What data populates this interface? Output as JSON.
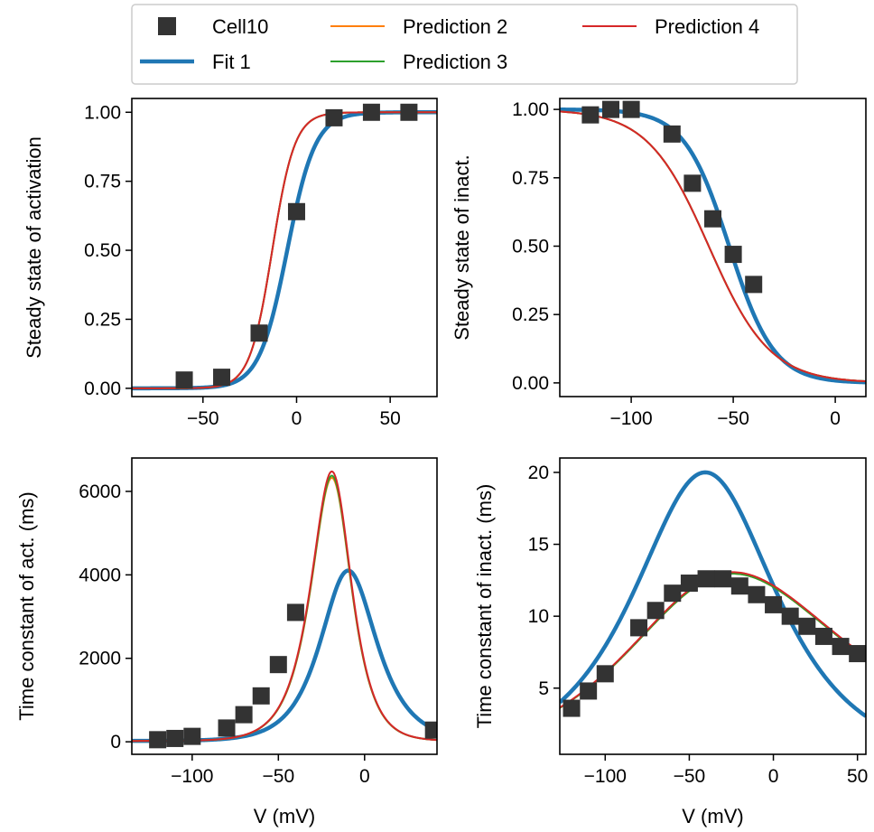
{
  "legend": {
    "placement": "top-center",
    "entries": [
      {
        "key": "cell10",
        "label": "Cell10",
        "kind": "marker",
        "color": "#333333"
      },
      {
        "key": "fit1",
        "label": "Fit 1",
        "kind": "line-thick",
        "color": "#1f77b4"
      },
      {
        "key": "pred2",
        "label": "Prediction 2",
        "kind": "line",
        "color": "#ff7f0e"
      },
      {
        "key": "pred3",
        "label": "Prediction 3",
        "kind": "line",
        "color": "#2ca02c"
      },
      {
        "key": "pred4",
        "label": "Prediction 4",
        "kind": "line",
        "color": "#d62728"
      }
    ]
  },
  "colors": {
    "cell10": "#333333",
    "fit1": "#1f77b4",
    "pred2": "#ff7f0e",
    "pred3": "#2ca02c",
    "pred4": "#d62728"
  },
  "chart_data": [
    {
      "type": "scatter",
      "id": "activation-ss",
      "xlabel": "",
      "ylabel": "Steady state of activation",
      "xlim": [
        -88,
        75
      ],
      "ylim": [
        -0.03,
        1.05
      ],
      "xticks": [
        -50,
        0,
        50
      ],
      "yticks": [
        0.0,
        0.25,
        0.5,
        0.75,
        1.0
      ],
      "ytick_labels": [
        "0.00",
        "0.25",
        "0.50",
        "0.75",
        "1.00"
      ],
      "grid": false,
      "series": [
        {
          "name": "Cell10",
          "role": "points",
          "x": [
            -60,
            -40,
            -20,
            0,
            20,
            40,
            60
          ],
          "y": [
            0.03,
            0.04,
            0.2,
            0.64,
            0.98,
            1.0,
            1.0
          ]
        },
        {
          "name": "Fit 1",
          "role": "curve",
          "model": "sigmoid-rise",
          "params": {
            "vhalf": -5,
            "k": 7.5
          }
        },
        {
          "name": "Prediction 2",
          "role": "curve",
          "model": "sigmoid-rise",
          "params": {
            "vhalf": -13,
            "k": 6
          }
        },
        {
          "name": "Prediction 3",
          "role": "curve",
          "model": "sigmoid-rise",
          "params": {
            "vhalf": -13,
            "k": 6
          }
        },
        {
          "name": "Prediction 4",
          "role": "curve",
          "model": "sigmoid-rise",
          "params": {
            "vhalf": -13,
            "k": 6
          }
        }
      ]
    },
    {
      "type": "scatter",
      "id": "inactivation-ss",
      "xlabel": "",
      "ylabel": "Steady state of inact.",
      "xlim": [
        -135,
        15
      ],
      "ylim": [
        -0.05,
        1.04
      ],
      "xticks": [
        -100,
        -50,
        0
      ],
      "yticks": [
        0.0,
        0.25,
        0.5,
        0.75,
        1.0
      ],
      "ytick_labels": [
        "0.00",
        "0.25",
        "0.50",
        "0.75",
        "1.00"
      ],
      "grid": false,
      "series": [
        {
          "name": "Cell10",
          "role": "points",
          "x": [
            -120,
            -110,
            -100,
            -80,
            -70,
            -60,
            -50,
            -40
          ],
          "y": [
            0.98,
            1.0,
            1.0,
            0.91,
            0.73,
            0.6,
            0.47,
            0.36
          ]
        },
        {
          "name": "Fit 1",
          "role": "curve",
          "model": "sigmoid-fall",
          "params": {
            "vhalf": -52,
            "k": 11
          }
        },
        {
          "name": "Prediction 2",
          "role": "curve",
          "model": "sigmoid-fall",
          "params": {
            "vhalf": -62,
            "k": 15
          }
        },
        {
          "name": "Prediction 3",
          "role": "curve",
          "model": "sigmoid-fall",
          "params": {
            "vhalf": -62,
            "k": 15
          }
        },
        {
          "name": "Prediction 4",
          "role": "curve",
          "model": "sigmoid-fall",
          "params": {
            "vhalf": -62,
            "k": 15
          }
        }
      ]
    },
    {
      "type": "scatter",
      "id": "activation-tau",
      "xlabel": "V (mV)",
      "ylabel": "Time constant of act. (ms)",
      "xlim": [
        -135,
        42
      ],
      "ylim": [
        -300,
        6800
      ],
      "xticks": [
        -100,
        -50,
        0
      ],
      "yticks": [
        0,
        2000,
        4000,
        6000
      ],
      "ytick_labels": [
        "0",
        "2000",
        "4000",
        "6000"
      ],
      "grid": false,
      "series": [
        {
          "name": "Cell10",
          "role": "points",
          "x": [
            -120,
            -110,
            -100,
            -80,
            -70,
            -60,
            -50,
            -40,
            40
          ],
          "y": [
            50,
            80,
            130,
            330,
            650,
            1100,
            1850,
            3100,
            280
          ]
        },
        {
          "name": "Fit 1",
          "role": "curve",
          "model": "bell",
          "params": {
            "base": 20,
            "peak": 4100,
            "center": -10,
            "w1": 14,
            "w2": 15
          }
        },
        {
          "name": "Prediction 2",
          "role": "curve",
          "model": "bell",
          "params": {
            "base": 20,
            "peak": 6300,
            "center": -18,
            "w1": 11.5,
            "w2": 9.5
          }
        },
        {
          "name": "Prediction 3",
          "role": "curve",
          "model": "bell",
          "params": {
            "base": 20,
            "peak": 6350,
            "center": -18,
            "w1": 11.5,
            "w2": 9.5
          }
        },
        {
          "name": "Prediction 4",
          "role": "curve",
          "model": "bell",
          "params": {
            "base": 20,
            "peak": 6450,
            "center": -18,
            "w1": 11.5,
            "w2": 9.5
          }
        }
      ]
    },
    {
      "type": "scatter",
      "id": "inactivation-tau",
      "xlabel": "V (mV)",
      "ylabel": "Time constant of inact. (ms)",
      "xlim": [
        -127,
        55
      ],
      "ylim": [
        0.4,
        21
      ],
      "xticks": [
        -100,
        -50,
        0,
        50
      ],
      "yticks": [
        5,
        10,
        15,
        20
      ],
      "ytick_labels": [
        "5",
        "10",
        "15",
        "20"
      ],
      "grid": false,
      "series": [
        {
          "name": "Cell10",
          "role": "points",
          "x": [
            -120,
            -110,
            -100,
            -80,
            -70,
            -60,
            -50,
            -40,
            -30,
            -20,
            -10,
            0,
            10,
            20,
            30,
            40,
            50
          ],
          "y": [
            3.6,
            4.8,
            6.0,
            9.2,
            10.4,
            11.6,
            12.3,
            12.6,
            12.6,
            12.1,
            11.5,
            10.8,
            10.0,
            9.3,
            8.6,
            7.9,
            7.4
          ]
        },
        {
          "name": "Fit 1",
          "role": "curve",
          "model": "bell",
          "params": {
            "base": 0,
            "peak": 20,
            "center": -40,
            "w1": 38,
            "w2": 37
          }
        },
        {
          "name": "Prediction 2",
          "role": "curve",
          "model": "bell",
          "params": {
            "base": 0,
            "peak": 12.6,
            "center": -38,
            "w1": 47,
            "w2": 76
          }
        },
        {
          "name": "Prediction 3",
          "role": "curve",
          "model": "bell",
          "params": {
            "base": 0,
            "peak": 12.6,
            "center": -38,
            "w1": 47,
            "w2": 76
          }
        },
        {
          "name": "Prediction 4",
          "role": "curve",
          "model": "bell",
          "params": {
            "base": 0,
            "peak": 12.7,
            "center": -38,
            "w1": 47,
            "w2": 76
          }
        }
      ]
    }
  ]
}
